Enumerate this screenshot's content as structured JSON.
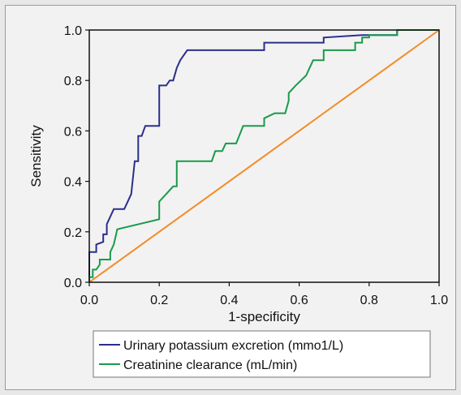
{
  "chart_data": {
    "type": "line",
    "title": "",
    "xlabel": "1-specificity",
    "ylabel": "Sensitivity",
    "xlim": [
      0.0,
      1.0
    ],
    "ylim": [
      0.0,
      1.0
    ],
    "xticks": [
      "0.0",
      "0.2",
      "0.4",
      "0.6",
      "0.8",
      "1.0"
    ],
    "yticks": [
      "0.0",
      "0.2",
      "0.4",
      "0.6",
      "0.8",
      "1.0"
    ],
    "grid": false,
    "legend_position": "bottom",
    "series": [
      {
        "name": "Urinary potassium excretion (mmo1/L)",
        "color": "#2b2f8a",
        "x": [
          0.0,
          0.0,
          0.02,
          0.02,
          0.04,
          0.04,
          0.05,
          0.05,
          0.06,
          0.07,
          0.1,
          0.12,
          0.13,
          0.14,
          0.14,
          0.15,
          0.16,
          0.17,
          0.17,
          0.19,
          0.2,
          0.2,
          0.22,
          0.23,
          0.24,
          0.25,
          0.26,
          0.28,
          0.5,
          0.5,
          0.67,
          0.67,
          0.78,
          0.8,
          0.8,
          0.88,
          0.88,
          1.0
        ],
        "y": [
          0.0,
          0.12,
          0.12,
          0.15,
          0.16,
          0.19,
          0.19,
          0.23,
          0.26,
          0.29,
          0.29,
          0.35,
          0.48,
          0.48,
          0.58,
          0.58,
          0.62,
          0.62,
          0.62,
          0.62,
          0.62,
          0.78,
          0.78,
          0.8,
          0.8,
          0.85,
          0.88,
          0.92,
          0.92,
          0.95,
          0.95,
          0.97,
          0.98,
          0.98,
          0.98,
          0.98,
          1.0,
          1.0
        ]
      },
      {
        "name": "Creatinine clearance (mL/min)",
        "color": "#1a9a4a",
        "x": [
          0.0,
          0.0,
          0.01,
          0.01,
          0.02,
          0.03,
          0.03,
          0.06,
          0.06,
          0.07,
          0.08,
          0.2,
          0.2,
          0.22,
          0.24,
          0.25,
          0.25,
          0.35,
          0.36,
          0.38,
          0.39,
          0.42,
          0.44,
          0.44,
          0.5,
          0.5,
          0.53,
          0.56,
          0.57,
          0.57,
          0.59,
          0.59,
          0.62,
          0.64,
          0.67,
          0.67,
          0.76,
          0.76,
          0.78,
          0.78,
          0.8,
          0.8,
          0.88,
          0.88,
          1.0
        ],
        "y": [
          0.0,
          0.02,
          0.02,
          0.05,
          0.05,
          0.07,
          0.09,
          0.09,
          0.12,
          0.15,
          0.21,
          0.25,
          0.32,
          0.35,
          0.38,
          0.38,
          0.48,
          0.48,
          0.52,
          0.52,
          0.55,
          0.55,
          0.62,
          0.62,
          0.62,
          0.65,
          0.67,
          0.67,
          0.72,
          0.75,
          0.78,
          0.78,
          0.82,
          0.88,
          0.88,
          0.92,
          0.92,
          0.95,
          0.95,
          0.97,
          0.97,
          0.98,
          0.98,
          1.0,
          1.0
        ]
      },
      {
        "name": "",
        "color": "#f28c28",
        "x": [
          0.0,
          1.0
        ],
        "y": [
          0.0,
          1.0
        ]
      }
    ]
  }
}
